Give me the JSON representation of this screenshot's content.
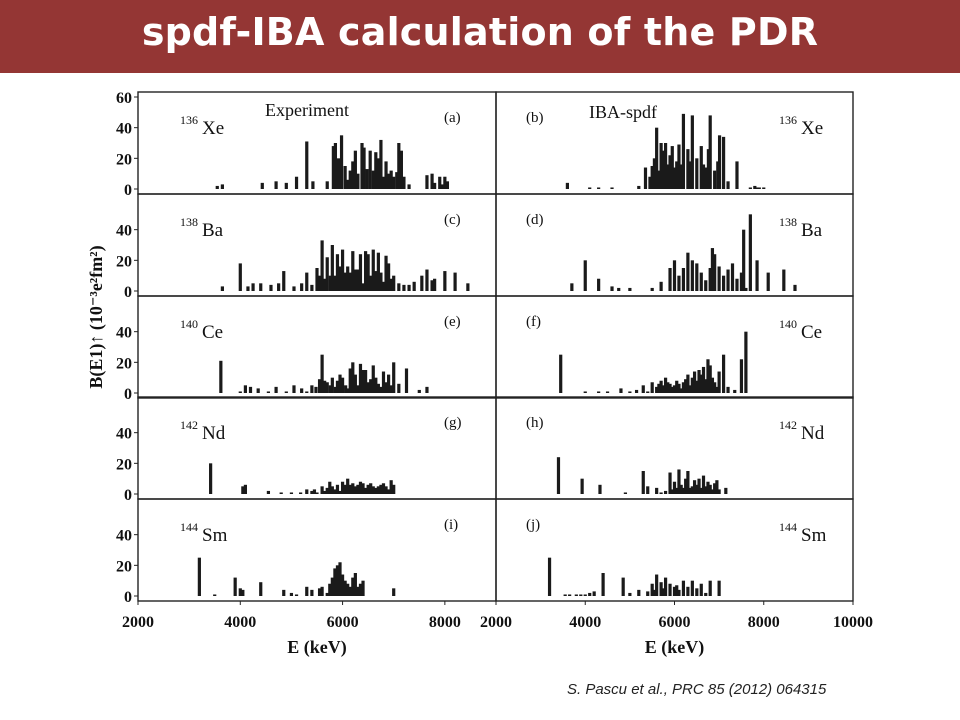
{
  "slide": {
    "title": "spdf-IBA calculation of the PDR",
    "citation": "S. Pascu et al., PRC 85 (2012) 064315"
  },
  "chart_data": {
    "type": "bar",
    "title": "",
    "ylabel": "B(E1)↑ (10⁻³e²fm²)",
    "xlabel": "E (keV)",
    "colors": {
      "bars": "#1a1a1a",
      "frame": "#222222"
    },
    "grid": false,
    "columns": [
      {
        "heading": "Experiment",
        "xlim": [
          2000,
          9000
        ],
        "xticks": [
          2000,
          4000,
          6000,
          8000
        ],
        "xlabel": "E (keV)"
      },
      {
        "heading": "IBA-spdf",
        "xlim": [
          2000,
          10000
        ],
        "xticks": [
          2000,
          4000,
          6000,
          8000,
          10000
        ],
        "xlabel": "E (keV)"
      }
    ],
    "rows": [
      {
        "nucleus_mass": "136",
        "nucleus_symbol": "Xe",
        "ylim": [
          0,
          60
        ],
        "yticks": [
          0,
          20,
          40,
          60
        ]
      },
      {
        "nucleus_mass": "138",
        "nucleus_symbol": "Ba",
        "ylim": [
          0,
          60
        ],
        "yticks": [
          0,
          20,
          40
        ]
      },
      {
        "nucleus_mass": "140",
        "nucleus_symbol": "Ce",
        "ylim": [
          0,
          60
        ],
        "yticks": [
          0,
          20,
          40
        ]
      },
      {
        "nucleus_mass": "142",
        "nucleus_symbol": "Nd",
        "ylim": [
          0,
          60
        ],
        "yticks": [
          0,
          20,
          40
        ]
      },
      {
        "nucleus_mass": "144",
        "nucleus_symbol": "Sm",
        "ylim": [
          0,
          60
        ],
        "yticks": [
          0,
          20,
          40
        ]
      }
    ],
    "panels": [
      {
        "label": "(a)",
        "col": 0,
        "row": 0,
        "x": [
          3550,
          3650,
          4430,
          4700,
          4900,
          5100,
          5300,
          5420,
          5700,
          5820,
          5860,
          5920,
          5980,
          6050,
          6100,
          6150,
          6200,
          6250,
          6300,
          6380,
          6420,
          6480,
          6540,
          6600,
          6650,
          6700,
          6750,
          6800,
          6850,
          6900,
          6950,
          7000,
          7060,
          7100,
          7150,
          7200,
          7300,
          7650,
          7750,
          7800,
          7900,
          7950,
          8000,
          8050
        ],
        "y": [
          2,
          3,
          4,
          5,
          4,
          8,
          31,
          5,
          5,
          28,
          30,
          20,
          35,
          15,
          6,
          12,
          18,
          25,
          10,
          30,
          27,
          13,
          25,
          12,
          24,
          20,
          32,
          8,
          18,
          10,
          12,
          8,
          11,
          30,
          25,
          8,
          3,
          9,
          10,
          4,
          8,
          3,
          8,
          5
        ]
      },
      {
        "label": "(b)",
        "col": 1,
        "row": 0,
        "x": [
          3600,
          4100,
          4300,
          4600,
          5200,
          5350,
          5450,
          5500,
          5550,
          5600,
          5650,
          5700,
          5750,
          5800,
          5860,
          5900,
          5950,
          6000,
          6050,
          6100,
          6150,
          6200,
          6300,
          6350,
          6400,
          6500,
          6600,
          6650,
          6700,
          6760,
          6800,
          6900,
          6970,
          7010,
          7100,
          7200,
          7400,
          7700,
          7800,
          7850,
          7900,
          8000
        ],
        "y": [
          4,
          1,
          1,
          1,
          2,
          14,
          8,
          15,
          20,
          40,
          12,
          30,
          25,
          30,
          16,
          22,
          28,
          14,
          18,
          29,
          16,
          49,
          26,
          18,
          48,
          20,
          28,
          16,
          14,
          26,
          48,
          12,
          18,
          35,
          34,
          5,
          18,
          1,
          2,
          1,
          1,
          1
        ]
      },
      {
        "label": "(c)",
        "col": 0,
        "row": 1,
        "x": [
          3650,
          4000,
          4150,
          4250,
          4400,
          4600,
          4750,
          4850,
          5050,
          5200,
          5300,
          5400,
          5500,
          5550,
          5600,
          5650,
          5700,
          5760,
          5800,
          5850,
          5900,
          5950,
          6000,
          6050,
          6100,
          6150,
          6200,
          6250,
          6300,
          6350,
          6400,
          6450,
          6500,
          6550,
          6600,
          6650,
          6700,
          6750,
          6800,
          6850,
          6900,
          6950,
          7000,
          7100,
          7200,
          7300,
          7400,
          7550,
          7650,
          7750,
          7800,
          8000,
          8200,
          8450
        ],
        "y": [
          3,
          18,
          3,
          5,
          5,
          4,
          5,
          13,
          3,
          5,
          12,
          4,
          15,
          10,
          33,
          8,
          22,
          10,
          30,
          10,
          24,
          16,
          27,
          12,
          16,
          12,
          26,
          14,
          14,
          24,
          5,
          26,
          24,
          10,
          27,
          13,
          25,
          12,
          6,
          23,
          18,
          8,
          10,
          5,
          4,
          4,
          6,
          10,
          14,
          7,
          8,
          13,
          12,
          5
        ]
      },
      {
        "label": "(d)",
        "col": 1,
        "row": 1,
        "x": [
          3700,
          4000,
          4300,
          4600,
          4750,
          5000,
          5500,
          5700,
          5900,
          6000,
          6100,
          6200,
          6300,
          6400,
          6500,
          6600,
          6700,
          6800,
          6850,
          6900,
          7000,
          7100,
          7200,
          7300,
          7400,
          7500,
          7550,
          7600,
          7700,
          7850,
          8100,
          8450,
          8700
        ],
        "y": [
          5,
          20,
          8,
          3,
          2,
          2,
          2,
          6,
          15,
          20,
          10,
          15,
          25,
          20,
          18,
          12,
          7,
          15,
          28,
          24,
          16,
          10,
          14,
          18,
          8,
          12,
          40,
          2,
          50,
          20,
          12,
          14,
          4
        ]
      },
      {
        "label": "(e)",
        "col": 0,
        "row": 2,
        "x": [
          3620,
          4000,
          4100,
          4200,
          4350,
          4550,
          4700,
          4900,
          5050,
          5200,
          5300,
          5400,
          5480,
          5550,
          5600,
          5650,
          5700,
          5760,
          5800,
          5860,
          5900,
          5950,
          6000,
          6060,
          6100,
          6150,
          6200,
          6250,
          6300,
          6350,
          6400,
          6450,
          6500,
          6550,
          6600,
          6650,
          6700,
          6750,
          6800,
          6850,
          6900,
          6950,
          7000,
          7100,
          7250,
          7500,
          7650
        ],
        "y": [
          21,
          1,
          5,
          4,
          3,
          1,
          4,
          1,
          5,
          3,
          1,
          5,
          4,
          9,
          25,
          8,
          7,
          5,
          10,
          4,
          8,
          12,
          10,
          5,
          3,
          16,
          20,
          12,
          5,
          19,
          15,
          15,
          7,
          9,
          18,
          10,
          6,
          4,
          14,
          7,
          12,
          5,
          20,
          6,
          16,
          2,
          4
        ]
      },
      {
        "label": "(f)",
        "col": 1,
        "row": 2,
        "x": [
          3450,
          4000,
          4300,
          4500,
          4800,
          5000,
          5150,
          5300,
          5400,
          5500,
          5600,
          5650,
          5700,
          5750,
          5800,
          5850,
          5900,
          5950,
          6000,
          6050,
          6100,
          6150,
          6200,
          6250,
          6300,
          6350,
          6400,
          6450,
          6500,
          6550,
          6600,
          6650,
          6700,
          6750,
          6800,
          6850,
          6900,
          6950,
          7000,
          7100,
          7200,
          7350,
          7500,
          7600
        ],
        "y": [
          25,
          1,
          1,
          1,
          3,
          1,
          2,
          5,
          1,
          7,
          4,
          6,
          8,
          5,
          10,
          7,
          6,
          4,
          5,
          8,
          6,
          3,
          7,
          9,
          12,
          5,
          10,
          14,
          8,
          15,
          12,
          17,
          9,
          22,
          18,
          10,
          7,
          4,
          14,
          25,
          4,
          2,
          22,
          40
        ]
      },
      {
        "label": "(g)",
        "col": 0,
        "row": 3,
        "x": [
          3420,
          4050,
          4100,
          4550,
          4800,
          5000,
          5180,
          5300,
          5400,
          5450,
          5500,
          5600,
          5650,
          5700,
          5750,
          5800,
          5850,
          5900,
          5950,
          6000,
          6050,
          6100,
          6150,
          6200,
          6250,
          6300,
          6350,
          6400,
          6450,
          6500,
          6550,
          6600,
          6650,
          6700,
          6750,
          6800,
          6850,
          6900,
          6950,
          7000
        ],
        "y": [
          20,
          5,
          6,
          2,
          1,
          1,
          1,
          3,
          2,
          3,
          1,
          5,
          2,
          4,
          8,
          5,
          3,
          6,
          2,
          8,
          6,
          10,
          6,
          7,
          5,
          6,
          8,
          7,
          4,
          6,
          7,
          5,
          4,
          5,
          6,
          7,
          5,
          3,
          9,
          6
        ]
      },
      {
        "label": "(h)",
        "col": 1,
        "row": 3,
        "x": [
          3400,
          3930,
          4330,
          4900,
          5300,
          5400,
          5600,
          5700,
          5800,
          5900,
          5950,
          6000,
          6050,
          6100,
          6150,
          6200,
          6250,
          6300,
          6350,
          6400,
          6450,
          6500,
          6550,
          6600,
          6650,
          6700,
          6750,
          6800,
          6850,
          6900,
          6950,
          7000,
          7150
        ],
        "y": [
          24,
          10,
          6,
          1,
          15,
          5,
          4,
          1,
          2,
          14,
          3,
          8,
          4,
          16,
          6,
          4,
          10,
          15,
          4,
          5,
          9,
          6,
          10,
          4,
          12,
          5,
          8,
          6,
          3,
          7,
          9,
          3,
          4
        ]
      },
      {
        "label": "(i)",
        "col": 0,
        "row": 4,
        "x": [
          3200,
          3500,
          3900,
          4000,
          4050,
          4400,
          4850,
          5000,
          5100,
          5300,
          5400,
          5550,
          5600,
          5700,
          5750,
          5800,
          5850,
          5900,
          5950,
          6000,
          6050,
          6100,
          6150,
          6200,
          6250,
          6300,
          6350,
          6400,
          7000
        ],
        "y": [
          25,
          1,
          12,
          5,
          4,
          9,
          4,
          2,
          1,
          6,
          4,
          5,
          6,
          2,
          8,
          12,
          18,
          20,
          22,
          14,
          10,
          8,
          6,
          12,
          15,
          6,
          8,
          10,
          5
        ]
      },
      {
        "label": "(j)",
        "col": 1,
        "row": 4,
        "x": [
          3200,
          3550,
          3650,
          3800,
          3900,
          4000,
          4100,
          4200,
          4400,
          4850,
          5000,
          5200,
          5400,
          5500,
          5550,
          5600,
          5700,
          5750,
          5800,
          5900,
          6000,
          6050,
          6100,
          6200,
          6300,
          6400,
          6500,
          6600,
          6700,
          6800,
          7000
        ],
        "y": [
          25,
          1,
          1,
          1,
          1,
          1,
          2,
          3,
          15,
          12,
          2,
          4,
          3,
          8,
          4,
          14,
          9,
          5,
          12,
          8,
          6,
          7,
          4,
          10,
          6,
          10,
          5,
          8,
          2,
          10,
          10
        ]
      }
    ]
  }
}
